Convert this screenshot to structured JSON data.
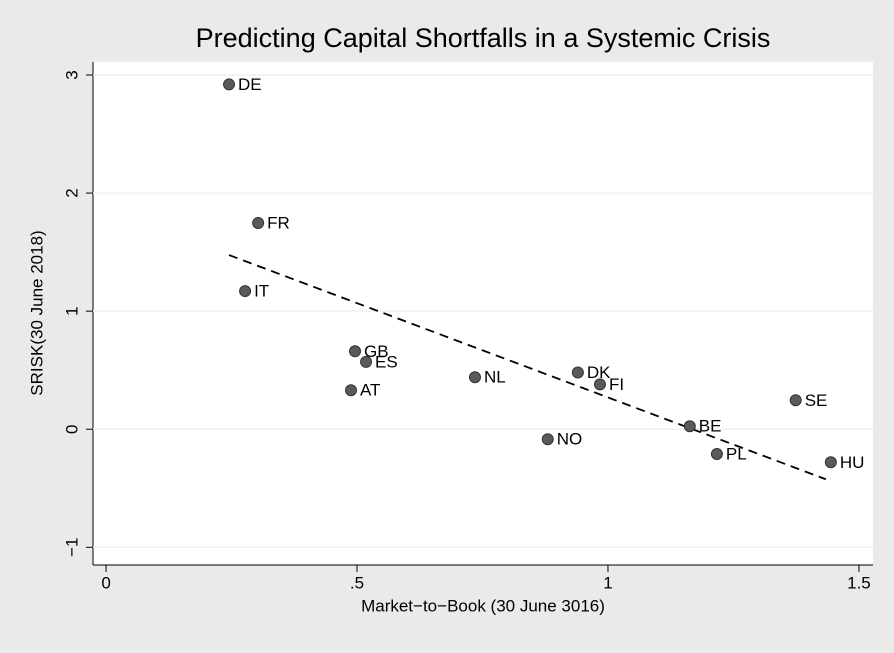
{
  "chart_data": {
    "type": "scatter",
    "title": "Predicting Capital Shortfalls in a Systemic Crisis",
    "xlabel": "Market−to−Book (30 June 3016)",
    "ylabel": "SRISK(30 June 2018)",
    "labels": [
      "DE",
      "FR",
      "IT",
      "GB",
      "ES",
      "AT",
      "NL",
      "DK",
      "FI",
      "NO",
      "BE",
      "PL",
      "SE",
      "HU"
    ],
    "x": [
      0.245,
      0.303,
      0.277,
      0.496,
      0.518,
      0.488,
      0.735,
      0.94,
      0.984,
      0.88,
      1.163,
      1.217,
      1.374,
      1.444
    ],
    "y": [
      2.92,
      1.746,
      1.17,
      0.66,
      0.57,
      0.33,
      0.44,
      0.48,
      0.38,
      -0.085,
      0.025,
      -0.21,
      0.245,
      -0.28
    ],
    "color": "#5a5a5a",
    "fit": {
      "x": [
        0.245,
        1.434
      ],
      "y": [
        1.475,
        -0.424
      ],
      "color": "#000000"
    },
    "xlim": [
      -0.026,
      1.528
    ],
    "ylim": [
      -1.15,
      3.11
    ],
    "xticks": [
      0,
      {
        "value": 0.5,
        "label": ".5"
      },
      1,
      1.5
    ],
    "yticks": [
      {
        "value": -1,
        "label": "−1"
      },
      0,
      1,
      2,
      3
    ],
    "grid": true
  }
}
